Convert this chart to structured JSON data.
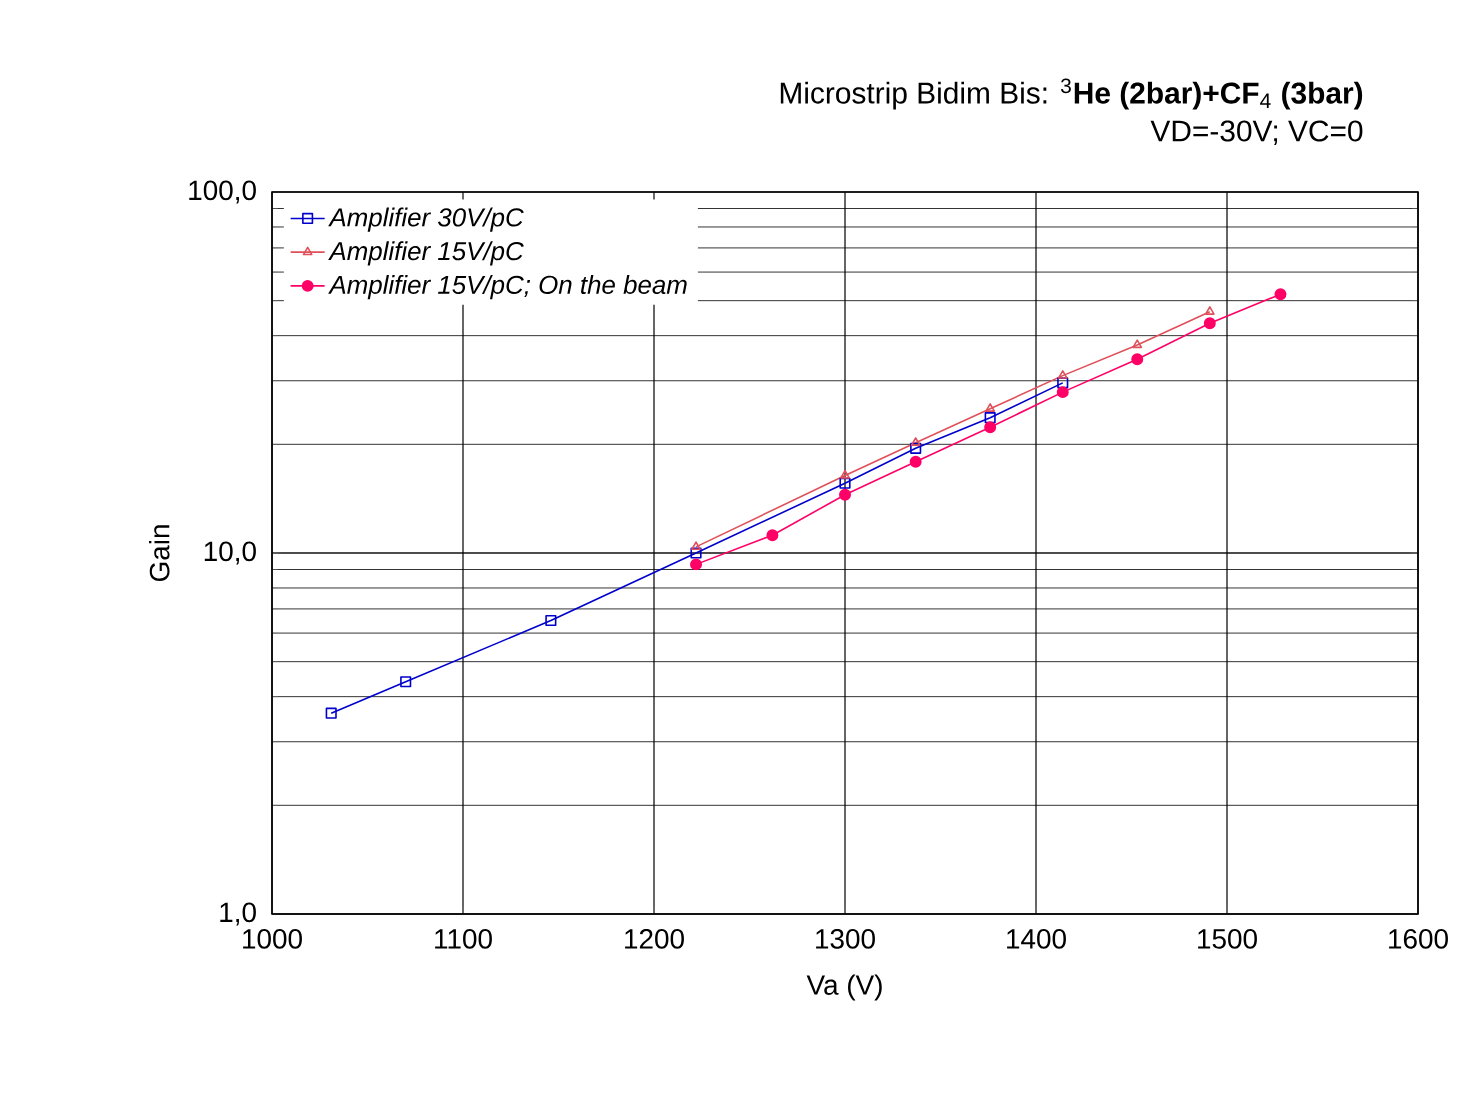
{
  "chart_data": {
    "type": "line",
    "title": "Microstrip Bidim  Bis: $^{3}$**He (2bar)+CF**$_{4}$ **(3bar)**",
    "subtitle": "VD=-30V; VC=0",
    "xlabel": "Va (V)",
    "ylabel": "Gain",
    "xlim": [
      1000,
      1600
    ],
    "xticks": [
      1000,
      1100,
      1200,
      1300,
      1400,
      1500,
      1600
    ],
    "ylim": [
      1,
      100
    ],
    "yticks": [
      {
        "value": 1,
        "label": "1,0"
      },
      {
        "value": 10,
        "label": "10,0"
      },
      {
        "value": 100,
        "label": "100,0"
      }
    ],
    "log": "y",
    "grid": true,
    "legend": "top left",
    "series": [
      {
        "name": "Amplifier 30V/pC",
        "color": "#0000cc",
        "marker": "square",
        "x": [
          1031,
          1070,
          1146,
          1222,
          1300,
          1337,
          1376,
          1414
        ],
        "values": [
          3.6,
          4.4,
          6.5,
          10.0,
          15.6,
          19.5,
          23.7,
          29.6
        ]
      },
      {
        "name": "Amplifier 15V/pC",
        "color": "#e0505a",
        "marker": "triangle",
        "x": [
          1222,
          1300,
          1337,
          1376,
          1414,
          1453,
          1491
        ],
        "values": [
          10.4,
          16.4,
          20.2,
          25.1,
          31.0,
          37.7,
          46.6
        ]
      },
      {
        "name": "Amplifier 15V/pC; On the beam",
        "color": "#ff0066",
        "marker": "circle",
        "x": [
          1222,
          1262,
          1300,
          1337,
          1376,
          1414,
          1453,
          1491,
          1528
        ],
        "values": [
          9.3,
          11.2,
          14.5,
          17.9,
          22.3,
          27.9,
          34.4,
          43.3,
          52.1
        ]
      }
    ]
  }
}
